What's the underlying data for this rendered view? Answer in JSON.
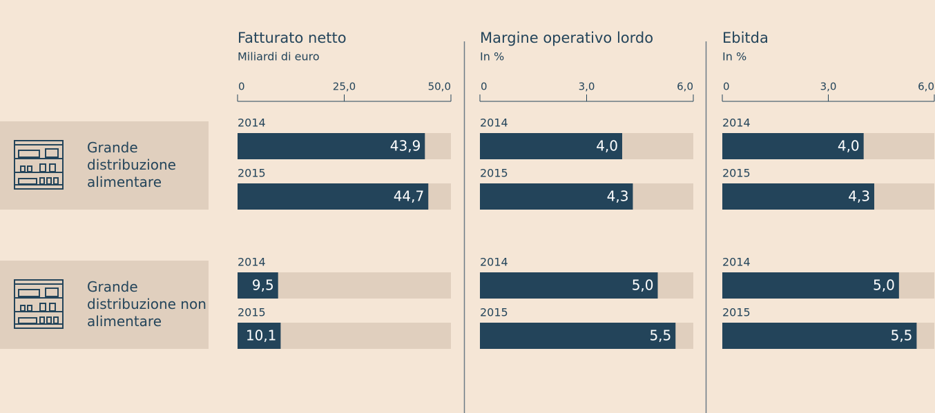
{
  "row_labels": [
    "Grande distribuzione alimentare",
    "Grande distribuzione non alimentare"
  ],
  "chart_data": [
    {
      "type": "bar",
      "orientation": "horizontal",
      "title": "Fatturato netto",
      "subtitle": "Miliardi di euro",
      "xlim": [
        0,
        50
      ],
      "xticks": [
        0,
        {
          "value": 25,
          "label": "25,0"
        },
        {
          "value": 50,
          "label": "50,0"
        }
      ],
      "track_color": "#e0cfbe",
      "series": [
        {
          "name": "2014",
          "color": "#23445a",
          "values": [
            43.9,
            9.5
          ],
          "value_labels": [
            "43,9",
            "9,5"
          ]
        },
        {
          "name": "2015",
          "color": "#23445a",
          "values": [
            44.7,
            10.1
          ],
          "value_labels": [
            "44,7",
            "10,1"
          ]
        }
      ]
    },
    {
      "type": "bar",
      "orientation": "horizontal",
      "title": "Margine operativo lordo",
      "subtitle": "In %",
      "xlim": [
        0,
        6
      ],
      "xticks": [
        0,
        {
          "value": 3,
          "label": "3,0"
        },
        {
          "value": 6,
          "label": "6,0"
        }
      ],
      "track_color": "#e0cfbe",
      "series": [
        {
          "name": "2014",
          "color": "#23445a",
          "values": [
            4.0,
            5.0
          ],
          "value_labels": [
            "4,0",
            "5,0"
          ]
        },
        {
          "name": "2015",
          "color": "#23445a",
          "values": [
            4.3,
            5.5
          ],
          "value_labels": [
            "4,3",
            "5,5"
          ]
        }
      ]
    },
    {
      "type": "bar",
      "orientation": "horizontal",
      "title": "Ebitda",
      "subtitle": "In %",
      "xlim": [
        0,
        6
      ],
      "xticks": [
        0,
        {
          "value": 3,
          "label": "3,0"
        },
        {
          "value": 6,
          "label": "6,0"
        }
      ],
      "track_color": "#e0cfbe",
      "series": [
        {
          "name": "2014",
          "color": "#23445a",
          "values": [
            4.0,
            5.0
          ],
          "value_labels": [
            "4,0",
            "5,0"
          ]
        },
        {
          "name": "2015",
          "color": "#23445a",
          "values": [
            4.3,
            5.5
          ],
          "value_labels": [
            "4,3",
            "5,5"
          ]
        }
      ]
    }
  ]
}
